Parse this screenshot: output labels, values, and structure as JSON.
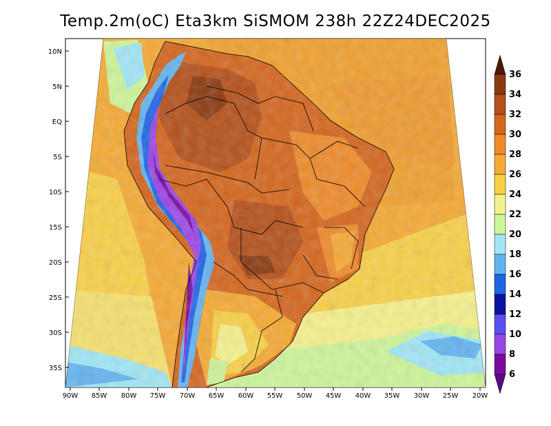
{
  "title": "Temp.2m(oC) Eta3km SiSMOM 238h 22Z24DEC2025",
  "lat_labels": [
    "10N",
    "5N",
    "EQ",
    "5S",
    "10S",
    "15S",
    "20S",
    "25S",
    "30S",
    "35S"
  ],
  "lon_labels": [
    "90W",
    "85W",
    "80W",
    "75W",
    "70W",
    "65W",
    "60W",
    "55W",
    "50W",
    "45W",
    "40W",
    "35W",
    "30W",
    "25W",
    "20W"
  ],
  "colorbar": {
    "levels": [
      "36",
      "34",
      "32",
      "30",
      "28",
      "26",
      "24",
      "22",
      "20",
      "18",
      "16",
      "14",
      "12",
      "10",
      "8",
      "6"
    ],
    "colors": [
      "#5b1a0a",
      "#8b3a10",
      "#b4501a",
      "#d4661e",
      "#ee8a2a",
      "#f5aa35",
      "#f8d048",
      "#f5f08c",
      "#cdf59a",
      "#a0e6f5",
      "#64b4f0",
      "#1e64e6",
      "#0a14a0",
      "#5a50f0",
      "#9b46e6",
      "#7a0aa0"
    ],
    "top_arrow_color": "#4a1808",
    "bottom_arrow_color": "#5a0a82"
  }
}
